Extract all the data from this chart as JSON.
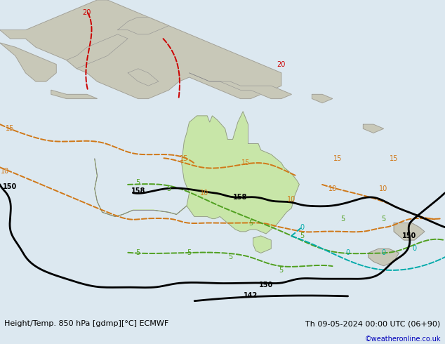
{
  "title_left": "Height/Temp. 850 hPa [gdmp][°C] ECMWF",
  "title_right": "Th 09-05-2024 00:00 UTC (06+90)",
  "credit": "©weatheronline.co.uk",
  "sea_color": "#dce8f0",
  "land_color_aus": "#c8e6a8",
  "land_color_other": "#c8c8b8",
  "figsize": [
    6.34,
    4.9
  ],
  "dpi": 100,
  "footer_bg": "#f0f0f0",
  "contour_black_color": "#000000",
  "contour_orange_color": "#d07818",
  "contour_green_color": "#50a020",
  "contour_red_color": "#cc0000",
  "contour_cyan_color": "#00aaaa",
  "footer_fontsize": 8,
  "credit_color": "#0000bb",
  "lon_min": 95,
  "lon_max": 182,
  "lat_min": -58,
  "lat_max": 15
}
